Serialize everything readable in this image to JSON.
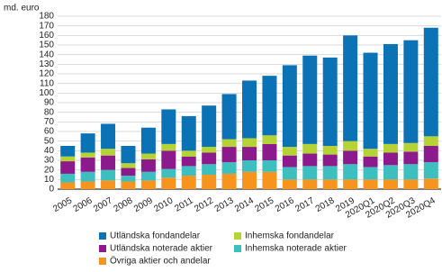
{
  "chart_data": {
    "type": "stacked-bar",
    "y_label": "md. euro",
    "categories": [
      "2005",
      "2006",
      "2007",
      "2008",
      "2009",
      "2010",
      "2011",
      "2012",
      "2013",
      "2014",
      "2015",
      "2016",
      "2017",
      "2018",
      "2019",
      "2020Q1",
      "2020Q2",
      "2020Q3",
      "2020Q4"
    ],
    "series": [
      {
        "name": "Övriga aktier och andelar",
        "color": "#f7941d",
        "values": [
          7,
          8,
          9,
          8,
          9,
          12,
          14,
          15,
          16,
          18,
          18,
          10,
          10,
          10,
          10,
          10,
          10,
          10,
          11
        ]
      },
      {
        "name": "Inhemska noterade aktier",
        "color": "#3ebfbf",
        "values": [
          9,
          10,
          11,
          6,
          9,
          9,
          10,
          11,
          12,
          12,
          12,
          13,
          14,
          14,
          16,
          13,
          15,
          16,
          17
        ]
      },
      {
        "name": "Utländska noterade aktier",
        "color": "#8d1a8c",
        "values": [
          13,
          15,
          15,
          8,
          13,
          19,
          10,
          12,
          16,
          14,
          17,
          12,
          13,
          12,
          14,
          11,
          13,
          13,
          17
        ]
      },
      {
        "name": "Inhemska fondandelar",
        "color": "#b5d334",
        "values": [
          5,
          5,
          7,
          5,
          6,
          7,
          6,
          6,
          8,
          9,
          9,
          9,
          10,
          9,
          10,
          8,
          9,
          9,
          10
        ]
      },
      {
        "name": "Utländska fondandelar",
        "color": "#0a72b5",
        "values": [
          11,
          20,
          26,
          18,
          27,
          36,
          36,
          43,
          47,
          60,
          62,
          85,
          92,
          92,
          110,
          100,
          104,
          107,
          113
        ]
      }
    ],
    "ylim": [
      0,
      180
    ],
    "yticks": [
      0,
      10,
      20,
      30,
      40,
      50,
      60,
      70,
      80,
      90,
      100,
      110,
      120,
      130,
      140,
      150,
      160,
      170,
      180
    ],
    "grid": true
  }
}
